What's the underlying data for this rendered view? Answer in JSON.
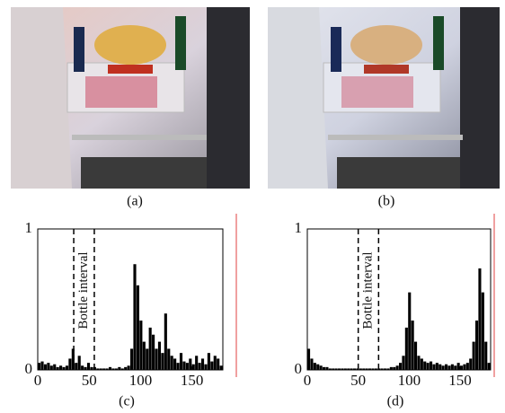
{
  "images": [
    {
      "caption": "(a)"
    },
    {
      "caption": "(b)"
    }
  ],
  "chart_data": [
    {
      "type": "bar",
      "caption": "(c)",
      "annotation": "Bottle interval",
      "interval": [
        35,
        55
      ],
      "color": "#000000",
      "xlim": [
        0,
        180
      ],
      "ylim": [
        0,
        1
      ],
      "xticks": [
        0,
        50,
        100,
        150
      ],
      "yticks": [
        0,
        1
      ],
      "x": [
        0,
        3,
        6,
        9,
        12,
        15,
        18,
        21,
        24,
        27,
        30,
        33,
        36,
        39,
        42,
        45,
        48,
        51,
        54,
        57,
        60,
        63,
        66,
        69,
        72,
        75,
        78,
        81,
        84,
        87,
        90,
        93,
        96,
        99,
        102,
        105,
        108,
        111,
        114,
        117,
        120,
        123,
        126,
        129,
        132,
        135,
        138,
        141,
        144,
        147,
        150,
        153,
        156,
        159,
        162,
        165,
        168,
        171,
        174,
        177
      ],
      "values": [
        0.05,
        0.06,
        0.04,
        0.05,
        0.03,
        0.04,
        0.02,
        0.03,
        0.02,
        0.03,
        0.08,
        0.15,
        0.05,
        0.1,
        0.03,
        0.02,
        0.05,
        0.02,
        0.02,
        0.01,
        0.01,
        0.01,
        0.01,
        0.02,
        0.01,
        0.01,
        0.02,
        0.01,
        0.02,
        0.03,
        0.15,
        0.75,
        0.6,
        0.35,
        0.2,
        0.15,
        0.3,
        0.25,
        0.15,
        0.2,
        0.12,
        0.4,
        0.15,
        0.1,
        0.08,
        0.05,
        0.12,
        0.06,
        0.05,
        0.08,
        0.04,
        0.1,
        0.05,
        0.08,
        0.04,
        0.12,
        0.06,
        0.1,
        0.08,
        0.03
      ]
    },
    {
      "type": "bar",
      "caption": "(d)",
      "annotation": "Bottle interval",
      "interval": [
        50,
        70
      ],
      "color": "#000000",
      "xlim": [
        0,
        180
      ],
      "ylim": [
        0,
        1
      ],
      "xticks": [
        0,
        50,
        100,
        150
      ],
      "yticks": [
        0,
        1
      ],
      "x": [
        0,
        3,
        6,
        9,
        12,
        15,
        18,
        21,
        24,
        27,
        30,
        33,
        36,
        39,
        42,
        45,
        48,
        51,
        54,
        57,
        60,
        63,
        66,
        69,
        72,
        75,
        78,
        81,
        84,
        87,
        90,
        93,
        96,
        99,
        102,
        105,
        108,
        111,
        114,
        117,
        120,
        123,
        126,
        129,
        132,
        135,
        138,
        141,
        144,
        147,
        150,
        153,
        156,
        159,
        162,
        165,
        168,
        171,
        174,
        177
      ],
      "values": [
        0.15,
        0.08,
        0.05,
        0.04,
        0.03,
        0.02,
        0.02,
        0.01,
        0.01,
        0.01,
        0.01,
        0.01,
        0.01,
        0.01,
        0.01,
        0.01,
        0.01,
        0.01,
        0.01,
        0.01,
        0.01,
        0.01,
        0.01,
        0.01,
        0.01,
        0.01,
        0.01,
        0.02,
        0.02,
        0.03,
        0.05,
        0.1,
        0.3,
        0.55,
        0.35,
        0.2,
        0.1,
        0.08,
        0.06,
        0.05,
        0.06,
        0.04,
        0.05,
        0.04,
        0.03,
        0.04,
        0.03,
        0.04,
        0.03,
        0.05,
        0.03,
        0.04,
        0.05,
        0.08,
        0.2,
        0.35,
        0.72,
        0.55,
        0.2,
        0.05
      ]
    }
  ]
}
